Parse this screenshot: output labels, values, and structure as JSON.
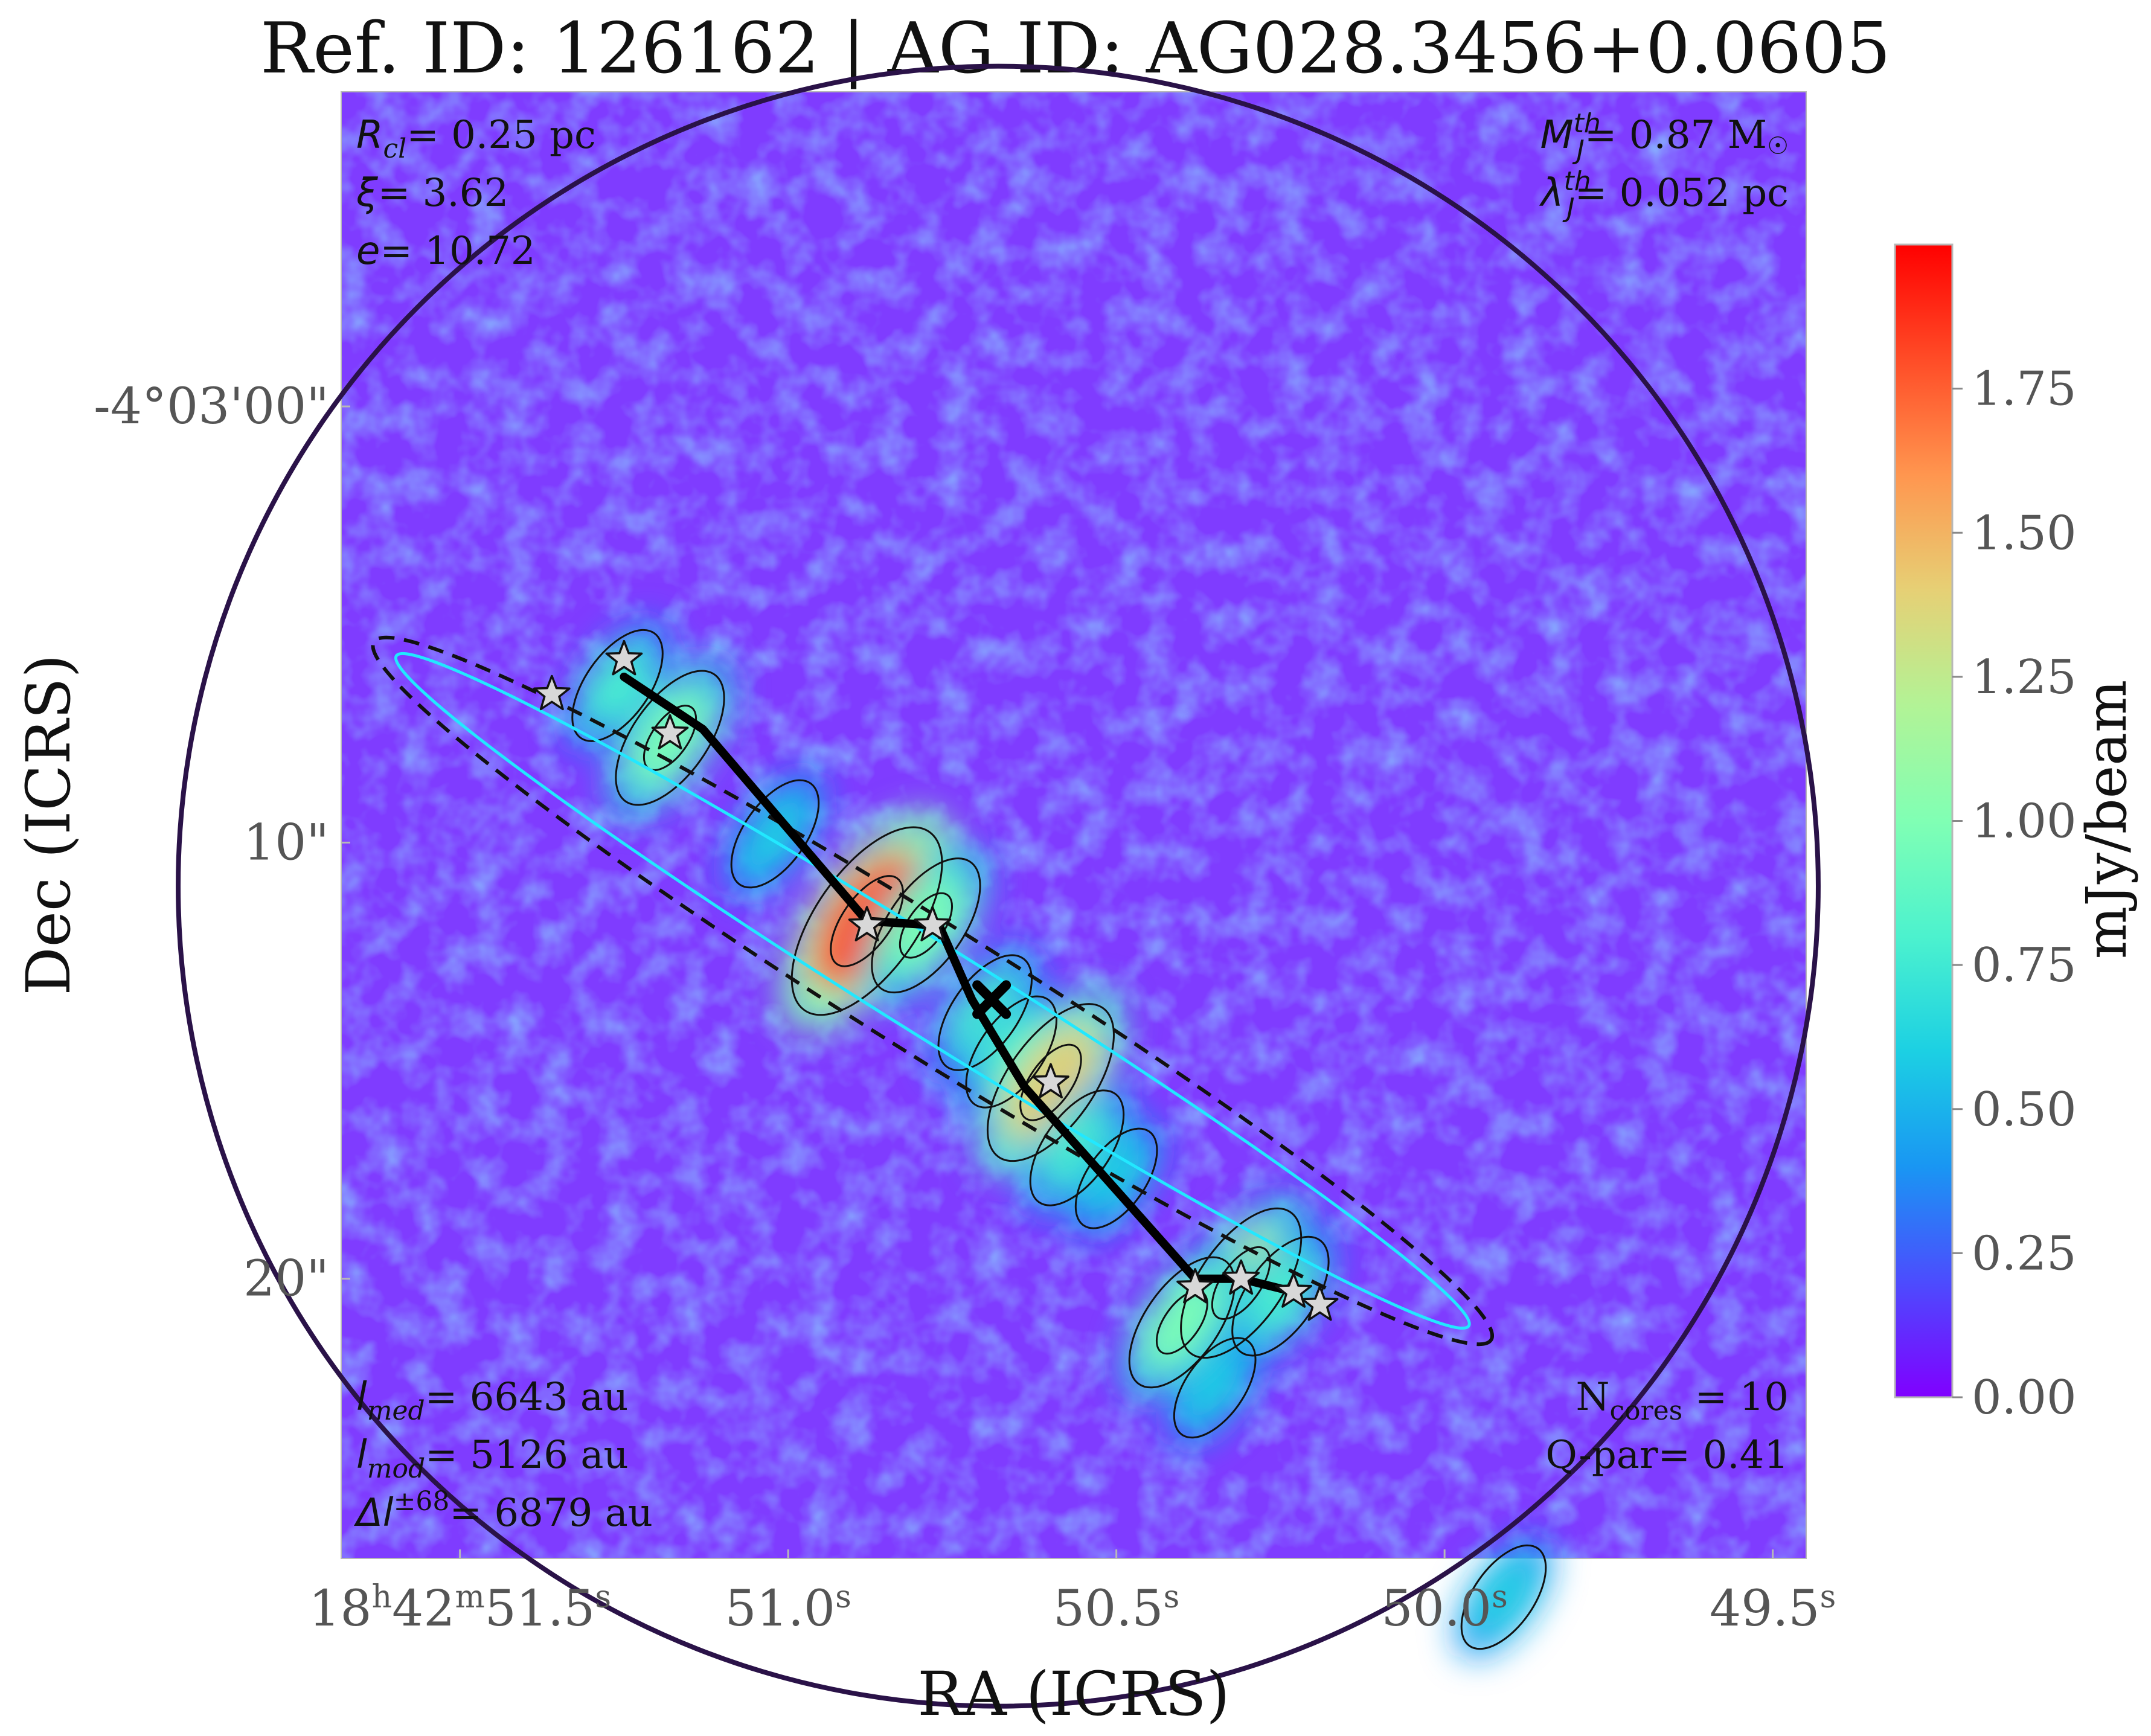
{
  "chart_data": {
    "type": "heatmap",
    "title": "Ref. ID: 126162 | AG ID: AG028.3456+0.0605",
    "xlabel": "RA (ICRS)",
    "ylabel": "Dec (ICRS)",
    "x_ticks": [
      {
        "h": "18",
        "m": "42",
        "s": "51.5",
        "sec": 51.5,
        "parts": {
          "hh": "18",
          "hsup": "h",
          "mm": "42",
          "msup": "m",
          "ss": "51.5",
          "ssup": "s"
        }
      },
      {
        "s": "51.0",
        "sec": 51.0,
        "parts": {
          "ss": "51.0",
          "ssup": "s"
        }
      },
      {
        "s": "50.5",
        "sec": 50.5,
        "parts": {
          "ss": "50.5",
          "ssup": "s"
        }
      },
      {
        "s": "50.0",
        "sec": 50.0,
        "parts": {
          "ss": "50.0",
          "ssup": "s"
        }
      },
      {
        "s": "49.5",
        "sec": 49.5,
        "parts": {
          "ss": "49.5",
          "ssup": "s"
        }
      }
    ],
    "x_range_sec": [
      51.68,
      49.45
    ],
    "y_ticks": [
      {
        "label": "-4°03'00\"",
        "arcsec": 0
      },
      {
        "label": "10\"",
        "arcsec": 10
      },
      {
        "label": "20\"",
        "arcsec": 20
      }
    ],
    "y_range_arcsec": [
      -7.2,
      26.4
    ],
    "colorbar": {
      "label": "mJy/beam",
      "colormap": "rainbow",
      "range": [
        0.0,
        2.0
      ],
      "ticks": [
        "0.00",
        "0.25",
        "0.50",
        "0.75",
        "1.00",
        "1.25",
        "1.50",
        "1.75"
      ],
      "tick_values": [
        0.0,
        0.25,
        0.5,
        0.75,
        1.0,
        1.25,
        1.5,
        1.75
      ],
      "colors": [
        "#8000ff",
        "#4c4cfe",
        "#1996f3",
        "#1cd0e3",
        "#4cf2ce",
        "#80ffb4",
        "#b2f396",
        "#e6d075",
        "#ff964f",
        "#ff4c27",
        "#ff0000"
      ]
    },
    "background_color": "#7f3cff",
    "field_center": {
      "ra_sec": 50.68,
      "dec_arcsec": 11.0
    },
    "field_radius_arcsec": 28.6,
    "clump_circle": {
      "ra_sec": 50.68,
      "dec_arcsec": 11.0,
      "radius_arcsec": 18.8,
      "color": "#2a1248"
    },
    "filament_spine": [
      {
        "ra_sec": 51.25,
        "dec_arcsec": 6.2
      },
      {
        "ra_sec": 51.13,
        "dec_arcsec": 7.4
      },
      {
        "ra_sec": 50.88,
        "dec_arcsec": 11.8
      },
      {
        "ra_sec": 50.77,
        "dec_arcsec": 11.9
      },
      {
        "ra_sec": 50.72,
        "dec_arcsec": 13.6
      },
      {
        "ra_sec": 50.64,
        "dec_arcsec": 15.6
      },
      {
        "ra_sec": 50.38,
        "dec_arcsec": 20.0
      },
      {
        "ra_sec": 50.31,
        "dec_arcsec": 20.0
      },
      {
        "ra_sec": 50.23,
        "dec_arcsec": 20.3
      }
    ],
    "cores": [
      {
        "ra_sec": 51.36,
        "dec_arcsec": 6.6
      },
      {
        "ra_sec": 51.25,
        "dec_arcsec": 5.8
      },
      {
        "ra_sec": 51.18,
        "dec_arcsec": 7.5
      },
      {
        "ra_sec": 50.88,
        "dec_arcsec": 11.9
      },
      {
        "ra_sec": 50.78,
        "dec_arcsec": 11.9
      },
      {
        "ra_sec": 50.6,
        "dec_arcsec": 15.5
      },
      {
        "ra_sec": 50.38,
        "dec_arcsec": 20.2
      },
      {
        "ra_sec": 50.31,
        "dec_arcsec": 20.0
      },
      {
        "ra_sec": 50.23,
        "dec_arcsec": 20.3
      },
      {
        "ra_sec": 50.19,
        "dec_arcsec": 20.6
      }
    ],
    "centroid": {
      "ra_sec": 50.69,
      "dec_arcsec": 13.6
    },
    "fit_ellipse": {
      "ra_sec": 50.78,
      "dec_arcsec": 13.4,
      "semi_major_arcsec": 15.1,
      "semi_minor_arcsec": 1.5,
      "angle_deg": 32
    },
    "emission_blobs": [
      {
        "ra_sec": 51.26,
        "dec_arcsec": 6.4,
        "value": 0.7
      },
      {
        "ra_sec": 51.18,
        "dec_arcsec": 7.6,
        "value": 1.0
      },
      {
        "ra_sec": 51.02,
        "dec_arcsec": 9.8,
        "value": 0.65
      },
      {
        "ra_sec": 50.88,
        "dec_arcsec": 11.8,
        "value": 1.7
      },
      {
        "ra_sec": 50.79,
        "dec_arcsec": 11.9,
        "value": 1.0
      },
      {
        "ra_sec": 50.7,
        "dec_arcsec": 13.9,
        "value": 0.75
      },
      {
        "ra_sec": 50.66,
        "dec_arcsec": 14.8,
        "value": 0.7
      },
      {
        "ra_sec": 50.6,
        "dec_arcsec": 15.5,
        "value": 1.3
      },
      {
        "ra_sec": 50.56,
        "dec_arcsec": 17.0,
        "value": 0.75
      },
      {
        "ra_sec": 50.5,
        "dec_arcsec": 17.7,
        "value": 0.55
      },
      {
        "ra_sec": 50.31,
        "dec_arcsec": 20.1,
        "value": 1.2
      },
      {
        "ra_sec": 50.4,
        "dec_arcsec": 21.0,
        "value": 0.95
      },
      {
        "ra_sec": 50.25,
        "dec_arcsec": 20.4,
        "value": 0.8
      },
      {
        "ra_sec": 50.35,
        "dec_arcsec": 22.5,
        "value": 0.55
      },
      {
        "ra_sec": 49.91,
        "dec_arcsec": 27.3,
        "value": 0.6
      }
    ],
    "annotations_top_left": [
      {
        "sym": "R",
        "sub": "cl",
        "val": "= 0.25 pc"
      },
      {
        "sym": "ξ",
        "val": "= 3.62"
      },
      {
        "sym": "e",
        "val": "= 10.72"
      }
    ],
    "annotations_top_right": [
      {
        "sym": "M",
        "sub": "J",
        "sup": "th",
        "val": "= 0.87 M",
        "unit_sym": "☉"
      },
      {
        "sym": "λ",
        "sub": "J",
        "sup": "th",
        "val": "= 0.052 pc"
      }
    ],
    "annotations_bottom_left": [
      {
        "sym": "l",
        "sub": "med",
        "val": "= 6643 au"
      },
      {
        "sym": "l",
        "sub": "mod",
        "val": "= 5126 au"
      },
      {
        "sym": "Δl",
        "sup": "±68",
        "val": "= 6879 au"
      }
    ],
    "annotations_bottom_right": [
      {
        "text": "N",
        "sub": "cores",
        "val": " = 10"
      },
      {
        "text": "Q-par",
        "val": "= 0.41"
      }
    ]
  }
}
